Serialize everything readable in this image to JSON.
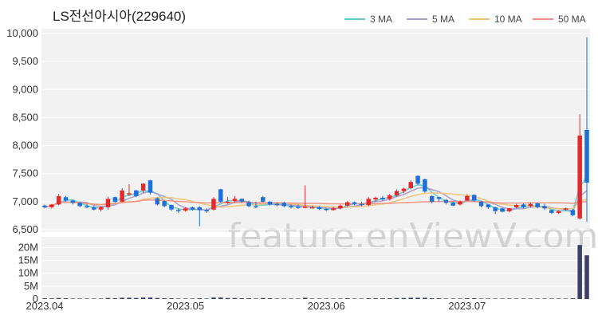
{
  "chart_data": {
    "type": "candlestick",
    "title": "LS전선아시아(229640)",
    "watermark": "feature.enViewV.com",
    "legend": [
      {
        "label": "3 MA",
        "color": "#5fc9c9"
      },
      {
        "label": "5 MA",
        "color": "#a69ac8"
      },
      {
        "label": "10 MA",
        "color": "#f0c27a"
      },
      {
        "label": "50 MA",
        "color": "#f09080"
      }
    ],
    "colors": {
      "up": "#e8262b",
      "down": "#1f6fd6",
      "volume": "#3b3f63"
    },
    "price_axis": {
      "min": 6500,
      "max": 10000,
      "ticks": [
        6500,
        7000,
        7500,
        8000,
        8500,
        9000,
        9500,
        10000
      ],
      "tick_labels": [
        "6,500",
        "7,000",
        "7,500",
        "8,000",
        "8,500",
        "9,000",
        "9,500",
        "10,000"
      ]
    },
    "volume_axis": {
      "min": 0,
      "max": 22000000,
      "ticks": [
        0,
        5000000,
        10000000,
        15000000,
        20000000
      ],
      "tick_labels": [
        "0",
        "5M",
        "10M",
        "15M",
        "20M"
      ]
    },
    "x_labels": [
      {
        "label": "2023.04",
        "index": 0
      },
      {
        "label": "2023.05",
        "index": 20
      },
      {
        "label": "2023.06",
        "index": 40
      },
      {
        "label": "2023.07",
        "index": 60
      }
    ],
    "candles": [
      [
        6930,
        6950,
        6880,
        6900,
        300000
      ],
      [
        6900,
        6960,
        6880,
        6950,
        250000
      ],
      [
        6950,
        7140,
        6940,
        7100,
        400000
      ],
      [
        7080,
        7100,
        7000,
        7020,
        300000
      ],
      [
        7020,
        7030,
        6950,
        6980,
        200000
      ],
      [
        6980,
        6990,
        6900,
        6920,
        200000
      ],
      [
        6920,
        6960,
        6880,
        6900,
        200000
      ],
      [
        6900,
        6930,
        6840,
        6860,
        200000
      ],
      [
        6860,
        6920,
        6830,
        6900,
        200000
      ],
      [
        6900,
        7090,
        6860,
        7050,
        400000
      ],
      [
        7080,
        7090,
        6990,
        7000,
        300000
      ],
      [
        7000,
        7240,
        6990,
        7200,
        500000
      ],
      [
        7130,
        7310,
        7100,
        7150,
        500000
      ],
      [
        7200,
        7210,
        7080,
        7100,
        400000
      ],
      [
        7200,
        7330,
        7150,
        7320,
        600000
      ],
      [
        7380,
        7390,
        7130,
        7160,
        600000
      ],
      [
        7060,
        7080,
        6930,
        6950,
        400000
      ],
      [
        7010,
        7020,
        6900,
        6920,
        300000
      ],
      [
        6940,
        6950,
        6830,
        6860,
        300000
      ],
      [
        6850,
        6880,
        6800,
        6830,
        200000
      ],
      [
        6840,
        6900,
        6820,
        6880,
        200000
      ],
      [
        6900,
        6910,
        6840,
        6860,
        200000
      ],
      [
        6900,
        6920,
        6560,
        6850,
        300000
      ],
      [
        6850,
        6880,
        6800,
        6830,
        200000
      ],
      [
        6860,
        7080,
        6840,
        7050,
        600000
      ],
      [
        7220,
        7230,
        6980,
        7000,
        600000
      ],
      [
        6990,
        7080,
        6960,
        7000,
        400000
      ],
      [
        7010,
        7100,
        6980,
        7050,
        400000
      ],
      [
        7050,
        7060,
        6980,
        7000,
        300000
      ],
      [
        6990,
        7020,
        6900,
        6920,
        300000
      ],
      [
        6920,
        7000,
        6880,
        6900,
        200000
      ],
      [
        7080,
        7100,
        6990,
        7000,
        400000
      ],
      [
        7000,
        7010,
        6930,
        6950,
        300000
      ],
      [
        6960,
        6990,
        6920,
        6950,
        200000
      ],
      [
        6980,
        7000,
        6900,
        6920,
        200000
      ],
      [
        6920,
        6950,
        6880,
        6900,
        200000
      ],
      [
        6910,
        6950,
        6870,
        6900,
        200000
      ],
      [
        6900,
        7290,
        6880,
        6910,
        500000
      ],
      [
        6900,
        6930,
        6880,
        6900,
        200000
      ],
      [
        6900,
        6920,
        6850,
        6870,
        200000
      ],
      [
        6870,
        6890,
        6830,
        6850,
        200000
      ],
      [
        6850,
        6910,
        6840,
        6880,
        200000
      ],
      [
        6880,
        6950,
        6860,
        6930,
        200000
      ],
      [
        6930,
        7010,
        6910,
        6990,
        300000
      ],
      [
        6990,
        7000,
        6940,
        6960,
        200000
      ],
      [
        6960,
        7000,
        6920,
        6940,
        200000
      ],
      [
        6940,
        7080,
        6920,
        7050,
        300000
      ],
      [
        7040,
        7090,
        7000,
        7070,
        300000
      ],
      [
        7070,
        7100,
        7020,
        7040,
        300000
      ],
      [
        7050,
        7140,
        7020,
        7110,
        300000
      ],
      [
        7110,
        7220,
        7090,
        7190,
        400000
      ],
      [
        7190,
        7250,
        7150,
        7230,
        400000
      ],
      [
        7240,
        7380,
        7220,
        7350,
        500000
      ],
      [
        7460,
        7470,
        7300,
        7320,
        500000
      ],
      [
        7400,
        7410,
        7160,
        7180,
        500000
      ],
      [
        7100,
        7120,
        6970,
        7000,
        300000
      ],
      [
        7080,
        7090,
        7000,
        7050,
        300000
      ],
      [
        7030,
        7050,
        6950,
        6980,
        200000
      ],
      [
        6980,
        7000,
        6920,
        6930,
        200000
      ],
      [
        6950,
        7020,
        6930,
        7000,
        200000
      ],
      [
        7020,
        7130,
        7010,
        7100,
        300000
      ],
      [
        7120,
        7130,
        7000,
        7020,
        300000
      ],
      [
        7000,
        7010,
        6900,
        6920,
        200000
      ],
      [
        6950,
        6960,
        6870,
        6900,
        200000
      ],
      [
        6900,
        6910,
        6780,
        6830,
        200000
      ],
      [
        6880,
        6890,
        6810,
        6820,
        200000
      ],
      [
        6830,
        6890,
        6810,
        6880,
        200000
      ],
      [
        6900,
        6960,
        6880,
        6940,
        200000
      ],
      [
        6950,
        6970,
        6880,
        6900,
        200000
      ],
      [
        6920,
        6980,
        6900,
        6960,
        200000
      ],
      [
        6970,
        6980,
        6880,
        6900,
        200000
      ],
      [
        6920,
        6960,
        6850,
        6880,
        200000
      ],
      [
        6850,
        6860,
        6780,
        6800,
        200000
      ],
      [
        6800,
        6850,
        6780,
        6830,
        200000
      ],
      [
        6860,
        6890,
        6840,
        6880,
        200000
      ],
      [
        6850,
        6870,
        6740,
        6760,
        300000
      ],
      [
        6700,
        8560,
        6680,
        8180,
        21000000
      ],
      [
        8280,
        9930,
        6640,
        7340,
        17000000
      ]
    ]
  }
}
